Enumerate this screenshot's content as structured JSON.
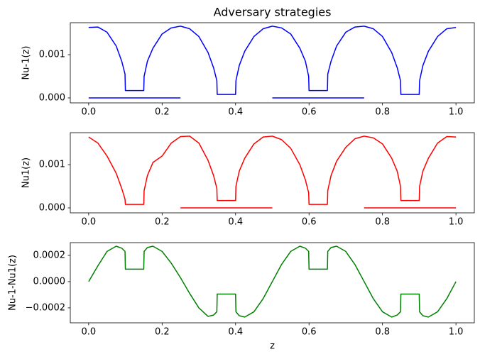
{
  "chart_data": [
    {
      "type": "line",
      "title": "Adversary strategies",
      "y_label": "Nu-1(z)",
      "x": [
        0,
        0.025,
        0.05,
        0.075,
        0.09,
        0.099,
        0.1,
        0.15,
        0.151,
        0.16,
        0.175,
        0.2,
        0.225,
        0.25,
        0.275,
        0.3,
        0.325,
        0.34,
        0.349,
        0.35,
        0.4,
        0.401,
        0.41,
        0.425,
        0.45,
        0.475,
        0.5,
        0.525,
        0.55,
        0.575,
        0.59,
        0.599,
        0.6,
        0.65,
        0.651,
        0.66,
        0.675,
        0.7,
        0.725,
        0.75,
        0.775,
        0.8,
        0.825,
        0.84,
        0.849,
        0.85,
        0.9,
        0.901,
        0.91,
        0.925,
        0.95,
        0.975,
        1.0
      ],
      "series": [
        {
          "color": "#0000ff",
          "values": [
            0.00163,
            0.00164,
            0.00152,
            0.0012,
            0.00085,
            0.00055,
            0.00017,
            0.00017,
            0.0005,
            0.00085,
            0.00115,
            0.00148,
            0.00162,
            0.00166,
            0.0016,
            0.00142,
            0.00105,
            0.0007,
            0.0004,
            8e-05,
            8e-05,
            0.0004,
            0.00075,
            0.00108,
            0.00142,
            0.0016,
            0.00166,
            0.00162,
            0.00148,
            0.00115,
            0.00085,
            0.0005,
            0.00017,
            0.00017,
            0.00055,
            0.00085,
            0.0012,
            0.00152,
            0.00164,
            0.00166,
            0.0016,
            0.00142,
            0.00105,
            0.0007,
            0.0004,
            8e-05,
            8e-05,
            0.0004,
            0.00075,
            0.00108,
            0.00142,
            0.0016,
            0.00163
          ]
        },
        {
          "color": "#0000ff",
          "values": [
            0,
            0,
            0,
            0,
            0,
            0,
            0,
            0,
            0,
            0,
            0,
            0,
            0,
            0,
            null,
            null,
            null,
            null,
            null,
            null,
            null,
            null,
            null,
            null,
            null,
            null,
            0,
            0,
            0,
            0,
            0,
            0,
            0,
            0,
            0,
            0,
            0,
            0,
            0,
            0,
            null,
            null,
            null,
            null,
            null,
            null,
            null,
            null,
            null,
            null,
            null,
            null,
            null
          ]
        }
      ],
      "xlim": [
        -0.05,
        1.05
      ],
      "ylim": [
        -0.000115,
        0.00174
      ],
      "xticks": [
        {
          "value": 0,
          "label": "0.0"
        },
        {
          "value": 0.2,
          "label": "0.2"
        },
        {
          "value": 0.4,
          "label": "0.4"
        },
        {
          "value": 0.6,
          "label": "0.6"
        },
        {
          "value": 0.8,
          "label": "0.8"
        },
        {
          "value": 1.0,
          "label": "1.0"
        }
      ],
      "yticks": [
        {
          "value": 0,
          "label": "0.000"
        },
        {
          "value": 0.001,
          "label": "0.001"
        }
      ]
    },
    {
      "type": "line",
      "y_label": "Nu1(z)",
      "x": [
        0,
        0.025,
        0.05,
        0.075,
        0.09,
        0.099,
        0.1,
        0.15,
        0.151,
        0.16,
        0.175,
        0.2,
        0.225,
        0.25,
        0.275,
        0.3,
        0.325,
        0.34,
        0.349,
        0.35,
        0.4,
        0.401,
        0.41,
        0.425,
        0.45,
        0.475,
        0.5,
        0.525,
        0.55,
        0.575,
        0.59,
        0.599,
        0.6,
        0.65,
        0.651,
        0.66,
        0.675,
        0.7,
        0.725,
        0.75,
        0.775,
        0.8,
        0.825,
        0.84,
        0.849,
        0.85,
        0.9,
        0.901,
        0.91,
        0.925,
        0.95,
        0.975,
        1.0
      ],
      "series": [
        {
          "color": "#ff0000",
          "values": [
            0.00164,
            0.0015,
            0.0012,
            0.0008,
            0.00045,
            0.0002,
            8e-05,
            8e-05,
            0.0004,
            0.00075,
            0.00105,
            0.0012,
            0.0015,
            0.00165,
            0.00166,
            0.0015,
            0.0011,
            0.00075,
            0.00045,
            0.00017,
            0.00017,
            0.0005,
            0.00085,
            0.00115,
            0.00148,
            0.00164,
            0.00166,
            0.00158,
            0.00138,
            0.001,
            0.00065,
            0.00035,
            8e-05,
            8e-05,
            0.0004,
            0.00075,
            0.00108,
            0.0014,
            0.0016,
            0.00166,
            0.00162,
            0.00148,
            0.00115,
            0.00085,
            0.0005,
            0.00017,
            0.00017,
            0.0005,
            0.00085,
            0.00115,
            0.0015,
            0.00165,
            0.00164
          ]
        },
        {
          "color": "#ff0000",
          "values": [
            null,
            null,
            null,
            null,
            null,
            null,
            null,
            null,
            null,
            null,
            null,
            null,
            null,
            0,
            0,
            0,
            0,
            0,
            0,
            0,
            0,
            0,
            0,
            0,
            0,
            0,
            0,
            null,
            null,
            null,
            null,
            null,
            null,
            null,
            null,
            null,
            null,
            null,
            null,
            0,
            0,
            0,
            0,
            0,
            0,
            0,
            0,
            0,
            0,
            0,
            0,
            0,
            0
          ]
        }
      ],
      "xlim": [
        -0.05,
        1.05
      ],
      "ylim": [
        -0.000115,
        0.00174
      ],
      "xticks": [
        {
          "value": 0,
          "label": "0.0"
        },
        {
          "value": 0.2,
          "label": "0.2"
        },
        {
          "value": 0.4,
          "label": "0.4"
        },
        {
          "value": 0.6,
          "label": "0.6"
        },
        {
          "value": 0.8,
          "label": "0.8"
        },
        {
          "value": 1.0,
          "label": "1.0"
        }
      ],
      "yticks": [
        {
          "value": 0,
          "label": "0.000"
        },
        {
          "value": 0.001,
          "label": "0.001"
        }
      ]
    },
    {
      "type": "line",
      "y_label": "Nu-1-Nu1(z)",
      "x_label": "z",
      "x": [
        0,
        0.025,
        0.05,
        0.075,
        0.09,
        0.099,
        0.1,
        0.15,
        0.151,
        0.16,
        0.175,
        0.2,
        0.225,
        0.25,
        0.275,
        0.3,
        0.325,
        0.34,
        0.349,
        0.35,
        0.4,
        0.401,
        0.41,
        0.425,
        0.45,
        0.475,
        0.5,
        0.525,
        0.55,
        0.575,
        0.59,
        0.599,
        0.6,
        0.65,
        0.651,
        0.66,
        0.675,
        0.7,
        0.725,
        0.75,
        0.775,
        0.8,
        0.825,
        0.84,
        0.849,
        0.85,
        0.9,
        0.901,
        0.91,
        0.925,
        0.95,
        0.975,
        1.0
      ],
      "series": [
        {
          "color": "#008000",
          "values": [
            0,
            0.00012,
            0.00023,
            0.00027,
            0.000255,
            0.00023,
            9.5e-05,
            9.5e-05,
            0.00023,
            0.00026,
            0.00027,
            0.00023,
            0.00014,
            3e-05,
            -9e-05,
            -0.0002,
            -0.000265,
            -0.000255,
            -0.00023,
            -9.5e-05,
            -9.5e-05,
            -0.00023,
            -0.00026,
            -0.00027,
            -0.00023,
            -0.00013,
            0,
            0.00013,
            0.00023,
            0.00027,
            0.000255,
            0.00023,
            9.5e-05,
            9.5e-05,
            0.00023,
            0.00026,
            0.00027,
            0.00023,
            0.00013,
            0,
            -0.00013,
            -0.00023,
            -0.00027,
            -0.000255,
            -0.00023,
            -9.5e-05,
            -9.5e-05,
            -0.00023,
            -0.00026,
            -0.00027,
            -0.00023,
            -0.00013,
            0
          ]
        }
      ],
      "xlim": [
        -0.05,
        1.05
      ],
      "ylim": [
        -0.000314,
        0.000297
      ],
      "xticks": [
        {
          "value": 0,
          "label": "0.0"
        },
        {
          "value": 0.2,
          "label": "0.2"
        },
        {
          "value": 0.4,
          "label": "0.4"
        },
        {
          "value": 0.6,
          "label": "0.6"
        },
        {
          "value": 0.8,
          "label": "0.8"
        },
        {
          "value": 1.0,
          "label": "1.0"
        }
      ],
      "yticks": [
        {
          "value": -0.0002,
          "label": "−0.0002"
        },
        {
          "value": 0,
          "label": "0.0000"
        },
        {
          "value": 0.0002,
          "label": "0.0002"
        }
      ]
    }
  ]
}
